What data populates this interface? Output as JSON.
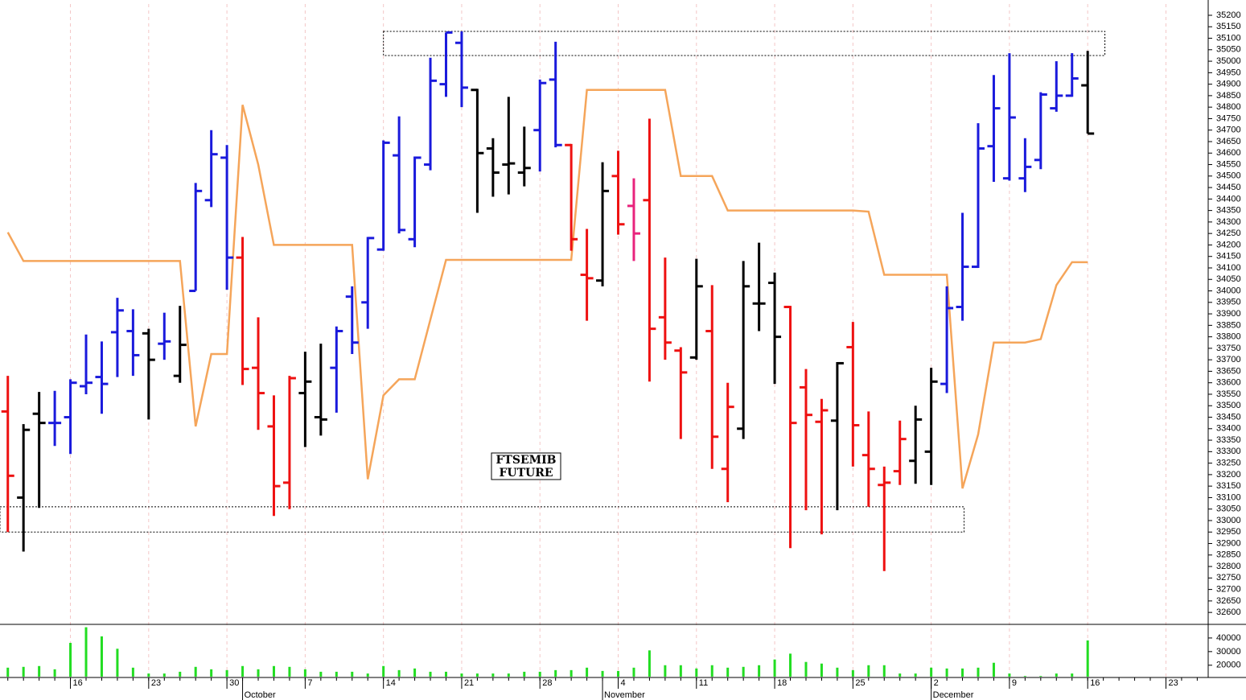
{
  "chart_data": {
    "type": "ohlc",
    "label_lines": [
      "FTSEMIB",
      "FUTURE"
    ],
    "open": [
      33475,
      33100,
      33465,
      33425,
      33450,
      33585,
      33625,
      33820,
      33825,
      33815,
      33770,
      33630,
      34000,
      34395,
      34580,
      34145,
      33665,
      33410,
      33165,
      33555,
      33450,
      33665,
      33975,
      33950,
      34180,
      34590,
      34225,
      34550,
      34900,
      35080,
      34875,
      34620,
      34550,
      34515,
      34700,
      34920,
      34635,
      34070,
      34045,
      34500,
      34370,
      34395,
      33885,
      33740,
      33710,
      33825,
      33225,
      33400,
      33945,
      34035,
      33930,
      33580,
      33430,
      33435,
      33755,
      33285,
      33155,
      33215,
      33260,
      33300,
      33595,
      33930,
      34105,
      34630,
      34490,
      34490,
      34570,
      34795,
      34850,
      34895
    ],
    "high": [
      33630,
      33420,
      33560,
      33565,
      33615,
      33810,
      33780,
      33970,
      33920,
      33835,
      33905,
      33935,
      34470,
      34700,
      34635,
      34235,
      33885,
      33545,
      33630,
      33735,
      33770,
      33845,
      34020,
      34235,
      34655,
      34760,
      34585,
      35015,
      35125,
      35130,
      34880,
      34665,
      34845,
      34715,
      34920,
      35085,
      34640,
      34270,
      34560,
      34610,
      34490,
      34750,
      34145,
      33755,
      34140,
      34025,
      33600,
      34130,
      34210,
      34080,
      33935,
      33660,
      33530,
      33690,
      33865,
      33475,
      33235,
      33435,
      33500,
      33665,
      34020,
      34340,
      34730,
      34940,
      35035,
      34665,
      34865,
      35000,
      35035,
      35045
    ],
    "low": [
      32950,
      32865,
      33055,
      33325,
      33290,
      33550,
      33465,
      33625,
      33630,
      33440,
      33700,
      33600,
      34000,
      34365,
      34005,
      33590,
      33395,
      33020,
      33050,
      33320,
      33370,
      33470,
      33725,
      33835,
      34175,
      34250,
      34190,
      34525,
      34845,
      34800,
      34340,
      34410,
      34420,
      34455,
      34520,
      34625,
      34175,
      33870,
      34020,
      34245,
      34130,
      33605,
      33700,
      33355,
      33700,
      33225,
      33080,
      33355,
      33825,
      33595,
      32880,
      33045,
      32940,
      33045,
      33235,
      33060,
      32780,
      33155,
      33160,
      33155,
      33555,
      33870,
      34100,
      34475,
      34480,
      34430,
      34530,
      34780,
      34845,
      34685
    ],
    "close": [
      33195,
      33395,
      33425,
      33425,
      33600,
      33600,
      33595,
      33915,
      33720,
      33700,
      33780,
      33765,
      34435,
      34595,
      34145,
      33660,
      33555,
      33150,
      33620,
      33605,
      33440,
      33825,
      33775,
      34230,
      34645,
      34265,
      34580,
      34915,
      35125,
      34885,
      34600,
      34515,
      34555,
      34535,
      34905,
      34635,
      34225,
      34055,
      34435,
      34290,
      34250,
      33835,
      33775,
      33645,
      34020,
      33365,
      33495,
      34020,
      33945,
      33800,
      33425,
      33460,
      33480,
      33685,
      33415,
      33225,
      33165,
      33355,
      33440,
      33605,
      33925,
      34105,
      34620,
      34795,
      34755,
      34540,
      34855,
      34850,
      34925,
      34685
    ],
    "bar_colors": [
      "#ee1111",
      "#000000",
      "#000000",
      "#1a1adc",
      "#1a1adc",
      "#1a1adc",
      "#1a1adc",
      "#1a1adc",
      "#1a1adc",
      "#000000",
      "#1a1adc",
      "#000000",
      "#1a1adc",
      "#1a1adc",
      "#1a1adc",
      "#ee1111",
      "#ee1111",
      "#ee1111",
      "#ee1111",
      "#000000",
      "#000000",
      "#1a1adc",
      "#1a1adc",
      "#1a1adc",
      "#1a1adc",
      "#1a1adc",
      "#1a1adc",
      "#1a1adc",
      "#1a1adc",
      "#1a1adc",
      "#000000",
      "#000000",
      "#000000",
      "#000000",
      "#1a1adc",
      "#1a1adc",
      "#ee1111",
      "#ee1111",
      "#000000",
      "#ee1111",
      "#e8237c",
      "#ee1111",
      "#ee1111",
      "#ee1111",
      "#000000",
      "#ee1111",
      "#ee1111",
      "#000000",
      "#000000",
      "#000000",
      "#ee1111",
      "#ee1111",
      "#ee1111",
      "#000000",
      "#ee1111",
      "#ee1111",
      "#ee1111",
      "#ee1111",
      "#000000",
      "#000000",
      "#1a1adc",
      "#1a1adc",
      "#1a1adc",
      "#1a1adc",
      "#1a1adc",
      "#1a1adc",
      "#1a1adc",
      "#1a1adc",
      "#1a1adc",
      "#000000"
    ],
    "line": {
      "color": "#f5a55a",
      "values": [
        34255,
        34130,
        34130,
        34130,
        34130,
        34130,
        34130,
        34130,
        34130,
        34130,
        34130,
        34130,
        33410,
        33725,
        33725,
        34810,
        34550,
        34200,
        34200,
        34200,
        34200,
        34200,
        34200,
        33180,
        33545,
        33615,
        33615,
        33875,
        34135,
        34135,
        34135,
        34135,
        34135,
        34135,
        34135,
        34135,
        34135,
        34875,
        34875,
        34875,
        34875,
        34875,
        34875,
        34500,
        34500,
        34500,
        34350,
        34350,
        34350,
        34350,
        34350,
        34350,
        34350,
        34350,
        34350,
        34345,
        34070,
        34070,
        34070,
        34070,
        34070,
        33140,
        33375,
        33775,
        33775,
        33775,
        33790,
        34025,
        34125,
        34125
      ]
    },
    "volume": {
      "color": "#22dd22",
      "ylim": [
        11000,
        50000
      ],
      "yticks": [
        20000,
        30000,
        40000
      ],
      "values": [
        18200,
        18800,
        19400,
        17000,
        36400,
        47900,
        41200,
        32100,
        18200,
        13900,
        13900,
        15200,
        18800,
        17000,
        16400,
        19400,
        17000,
        19400,
        18800,
        17000,
        15200,
        15200,
        15200,
        13900,
        19400,
        16400,
        17600,
        15200,
        15200,
        13900,
        13900,
        13900,
        13900,
        15200,
        15200,
        16400,
        16400,
        18200,
        15800,
        15800,
        18200,
        30900,
        20000,
        20000,
        17600,
        20000,
        18200,
        18800,
        20000,
        24200,
        28500,
        22400,
        21200,
        18200,
        16400,
        20000,
        20000,
        13900,
        13900,
        18200,
        17600,
        17600,
        18200,
        21800,
        13900,
        12100,
        12100,
        13900,
        13900,
        38200
      ]
    },
    "zones": [
      {
        "ylim": [
          35025,
          35130
        ],
        "xlim": [
          24,
          70.1
        ]
      },
      {
        "ylim": [
          32950,
          33060
        ],
        "xlim": [
          -0.5,
          61.1
        ]
      }
    ],
    "xlim": [
      -0.5,
      76.7
    ],
    "ylim": [
      32548,
      35249
    ],
    "yticks": [
      32600,
      32650,
      32700,
      32750,
      32800,
      32850,
      32900,
      32950,
      33000,
      33050,
      33100,
      33150,
      33200,
      33250,
      33300,
      33350,
      33400,
      33450,
      33500,
      33550,
      33600,
      33650,
      33700,
      33750,
      33800,
      33850,
      33900,
      33950,
      34000,
      34050,
      34100,
      34150,
      34200,
      34250,
      34300,
      34350,
      34400,
      34450,
      34500,
      34550,
      34600,
      34650,
      34700,
      34750,
      34800,
      34850,
      34900,
      34950,
      35000,
      35050,
      35100,
      35150,
      35200
    ],
    "xticks": [
      {
        "value": 4,
        "label": "16"
      },
      {
        "value": 9,
        "label": "23"
      },
      {
        "value": 14,
        "label": "30"
      },
      {
        "value": 19,
        "label": "7"
      },
      {
        "value": 24,
        "label": "14"
      },
      {
        "value": 29,
        "label": "21"
      },
      {
        "value": 34,
        "label": "28"
      },
      {
        "value": 39,
        "label": "4"
      },
      {
        "value": 44,
        "label": "11"
      },
      {
        "value": 49,
        "label": "18"
      },
      {
        "value": 54,
        "label": "25"
      },
      {
        "value": 59,
        "label": "2"
      },
      {
        "value": 64,
        "label": "9"
      },
      {
        "value": 69,
        "label": "16"
      },
      {
        "value": 74,
        "label": "23"
      }
    ],
    "month_ticks": [
      {
        "value": 15,
        "label": "October"
      },
      {
        "value": 38,
        "label": "November"
      },
      {
        "value": 59,
        "label": "December"
      }
    ],
    "grid": true
  }
}
